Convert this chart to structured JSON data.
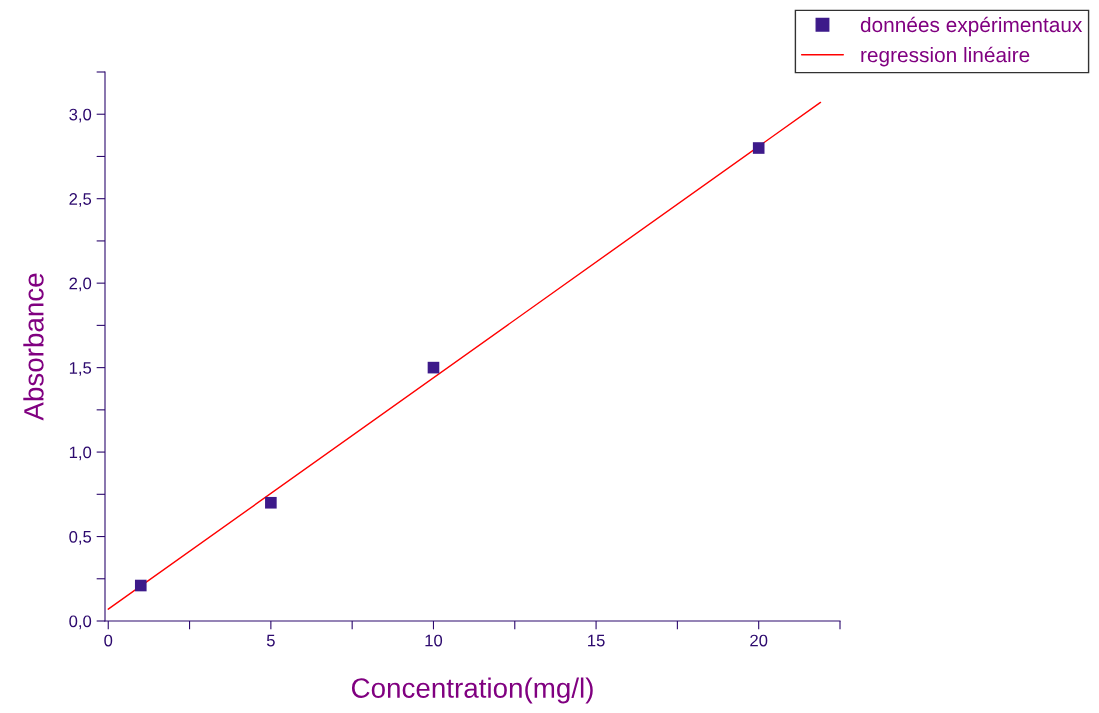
{
  "chart_data": {
    "type": "scatter",
    "xlabel": "Concentration(mg/l)",
    "ylabel": "Absorbance",
    "series": [
      {
        "name": "données expérimentaux",
        "color": "#3d1a8a",
        "marker": "square",
        "x": [
          1,
          5,
          10,
          20
        ],
        "values": [
          0.21,
          0.7,
          1.5,
          2.8
        ]
      },
      {
        "name": "regression linéaire",
        "type": "line",
        "color": "#ff0000",
        "line_style": "solid",
        "x": [
          0,
          21.9
        ],
        "values": [
          0.07,
          3.07
        ]
      }
    ],
    "xlim": [
      -0.1,
      22.5
    ],
    "ylim": [
      0,
      3.25
    ],
    "xticks": [
      0,
      {
        "value": 2.5,
        "label": null
      },
      5,
      {
        "value": 7.5,
        "label": null
      },
      10,
      {
        "value": 12.5,
        "label": null
      },
      15,
      {
        "value": 17.5,
        "label": null
      },
      20,
      {
        "value": 22.5,
        "label": null
      }
    ],
    "yticks": [
      {
        "value": 0,
        "label": "0,0"
      },
      {
        "value": 0.25,
        "label": null
      },
      {
        "value": 0.5,
        "label": "0,5"
      },
      {
        "value": 0.75,
        "label": null
      },
      {
        "value": 1.0,
        "label": "1,0"
      },
      {
        "value": 1.25,
        "label": null
      },
      {
        "value": 1.5,
        "label": "1,5"
      },
      {
        "value": 1.75,
        "label": null
      },
      {
        "value": 2.0,
        "label": "2,0"
      },
      {
        "value": 2.25,
        "label": null
      },
      {
        "value": 2.5,
        "label": "2,5"
      },
      {
        "value": 2.75,
        "label": null
      },
      {
        "value": 3.0,
        "label": "3,0"
      },
      {
        "value": 3.25,
        "label": null
      }
    ],
    "grid": false,
    "legend": "top right"
  }
}
